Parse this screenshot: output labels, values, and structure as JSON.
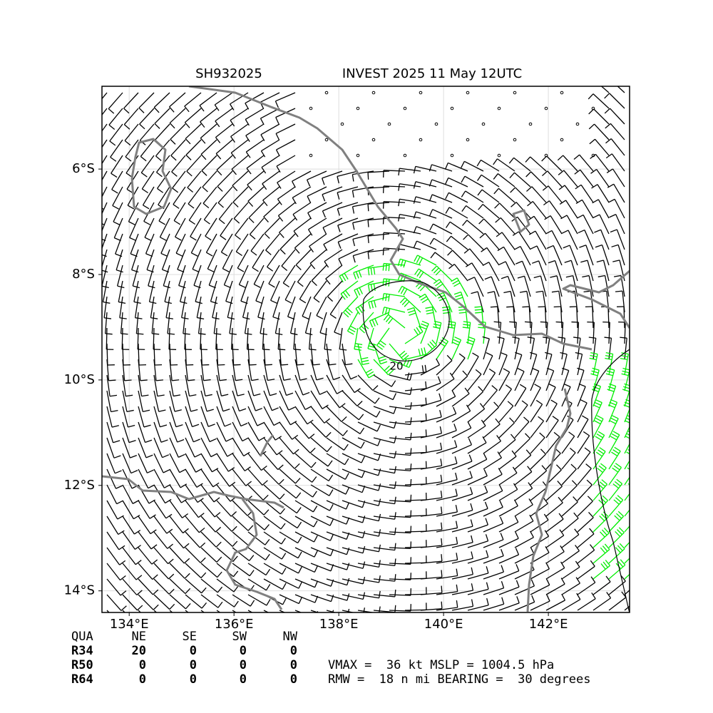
{
  "map": {
    "title_left": "SH932025",
    "title_right": "INVEST 2025 11 May 12UTC",
    "xlim": [
      133.48,
      143.55
    ],
    "ylim": [
      -14.41,
      -4.43
    ],
    "xticks": [
      {
        "value": 134,
        "label": "134°E"
      },
      {
        "value": 136,
        "label": "136°E"
      },
      {
        "value": 138,
        "label": "138°E"
      },
      {
        "value": 140,
        "label": "140°E"
      },
      {
        "value": 142,
        "label": "142°E"
      }
    ],
    "yticks": [
      {
        "value": -6,
        "label": "6°S"
      },
      {
        "value": -8,
        "label": "8°S"
      },
      {
        "value": -10,
        "label": "10°S"
      },
      {
        "value": -12,
        "label": "12°S"
      },
      {
        "value": -14,
        "label": "14°S"
      }
    ],
    "contour_label": "20"
  },
  "table": {
    "header": [
      "QUA",
      "NE",
      "SE",
      "SW",
      "NW"
    ],
    "rows": [
      [
        "R34",
        "20",
        "0",
        "0",
        "0"
      ],
      [
        "R50",
        "0",
        "0",
        "0",
        "0"
      ],
      [
        "R64",
        "0",
        "0",
        "0",
        "0"
      ]
    ]
  },
  "info": [
    "VMAX =  36 kt MSLP = 1004.5 hPa",
    "RMW =  18 n mi BEARING =  30 degrees"
  ]
}
